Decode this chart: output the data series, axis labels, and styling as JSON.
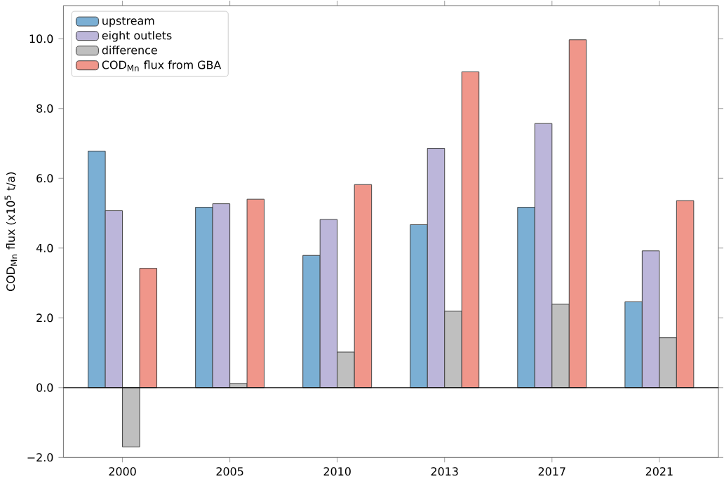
{
  "chart_data": {
    "type": "bar",
    "xlabel": null,
    "ylabel": "COD$_{Mn}$ flux (x10$^{5}$ t/a)",
    "categories": [
      "2000",
      "2005",
      "2010",
      "2013",
      "2017",
      "2021"
    ],
    "series": [
      {
        "name": "upstream",
        "color": "#7bafd4",
        "values": [
          6.78,
          5.17,
          3.79,
          4.67,
          5.17,
          2.46
        ]
      },
      {
        "name": "eight outlets",
        "color": "#bcb6da",
        "values": [
          5.07,
          5.27,
          4.82,
          6.86,
          7.57,
          3.92
        ]
      },
      {
        "name": "difference",
        "color": "#bfbfbf",
        "values": [
          -1.7,
          0.12,
          1.02,
          2.19,
          2.39,
          1.43
        ]
      },
      {
        "name": "COD$_{Mn}$ flux from GBA",
        "color": "#f0968a",
        "values": [
          3.42,
          5.4,
          5.82,
          9.05,
          9.97,
          5.36
        ]
      }
    ],
    "ylim": [
      -2,
      10.95
    ],
    "yticks": [
      {
        "value": -2,
        "label": "−2.0"
      },
      {
        "value": 0,
        "label": "0.0"
      },
      {
        "value": 2,
        "label": "2.0"
      },
      {
        "value": 4,
        "label": "4.0"
      },
      {
        "value": 6,
        "label": "6.0"
      },
      {
        "value": 8,
        "label": "8.0"
      },
      {
        "value": 10,
        "label": "10.0"
      }
    ],
    "ref_lines": [
      {
        "axis": "y",
        "value": 0,
        "color": "#000000"
      }
    ],
    "grid": false,
    "legend": "top left"
  }
}
